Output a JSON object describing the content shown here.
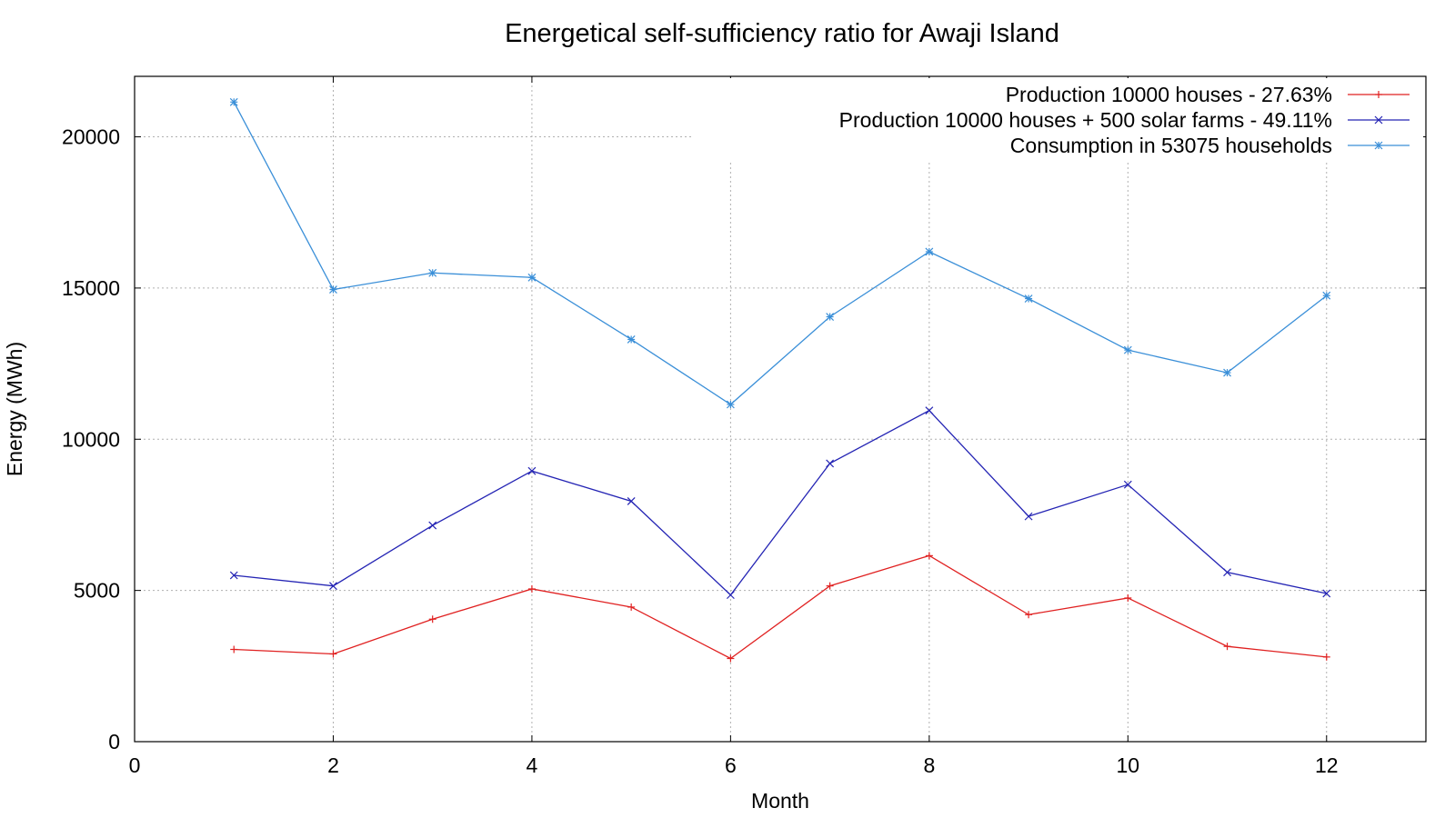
{
  "chart_data": {
    "type": "line",
    "title": "Energetical self-sufficiency ratio for Awaji Island",
    "xlabel": "Month",
    "ylabel": "Energy (MWh)",
    "xlim": [
      0,
      13
    ],
    "ylim": [
      0,
      22000
    ],
    "xticks": [
      0,
      2,
      4,
      6,
      8,
      10,
      12
    ],
    "yticks": [
      0,
      5000,
      10000,
      15000,
      20000
    ],
    "grid": true,
    "legend_position": "top-right",
    "x": [
      1,
      2,
      3,
      4,
      5,
      6,
      7,
      8,
      9,
      10,
      11,
      12
    ],
    "series": [
      {
        "name": "Production 10000 houses - 27.63%",
        "color": "#e02020",
        "marker": "plus",
        "values": [
          3050,
          2900,
          4050,
          5050,
          4450,
          2750,
          5150,
          6150,
          4200,
          4750,
          3150,
          2800
        ]
      },
      {
        "name": "Production 10000 houses + 500 solar farms - 49.11%",
        "color": "#2424b4",
        "marker": "cross",
        "values": [
          5500,
          5150,
          7150,
          8950,
          7950,
          4850,
          9200,
          10950,
          7450,
          8500,
          5600,
          4900
        ]
      },
      {
        "name": "Consumption in 53075 households",
        "color": "#3a8fd8",
        "marker": "star",
        "values": [
          21150,
          14950,
          15500,
          15350,
          13300,
          11150,
          14050,
          16200,
          14650,
          12950,
          12200,
          14750
        ]
      }
    ]
  }
}
